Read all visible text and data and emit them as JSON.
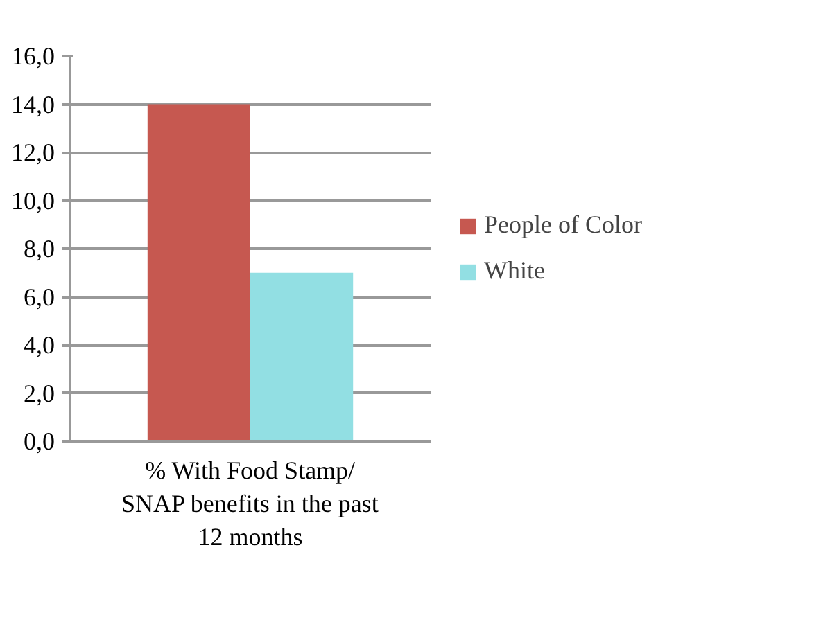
{
  "chart_data": {
    "type": "bar",
    "categories": [
      "% With Food Stamp/\nSNAP benefits in the past\n12 months"
    ],
    "series": [
      {
        "name": "People of Color",
        "color": "#c65850",
        "values": [
          14.0
        ]
      },
      {
        "name": "White",
        "color": "#92dfe3",
        "values": [
          7.0
        ]
      }
    ],
    "ylim": [
      0,
      16
    ],
    "yticks": [
      {
        "value": 0,
        "label": "0,0"
      },
      {
        "value": 2,
        "label": "2,0"
      },
      {
        "value": 4,
        "label": "4,0"
      },
      {
        "value": 6,
        "label": "6,0"
      },
      {
        "value": 8,
        "label": "8,0"
      },
      {
        "value": 10,
        "label": "10,0"
      },
      {
        "value": 12,
        "label": "12,0"
      },
      {
        "value": 14,
        "label": "14,0"
      },
      {
        "value": 16,
        "label": "16,0"
      }
    ],
    "grid": "y",
    "legend": "right"
  }
}
